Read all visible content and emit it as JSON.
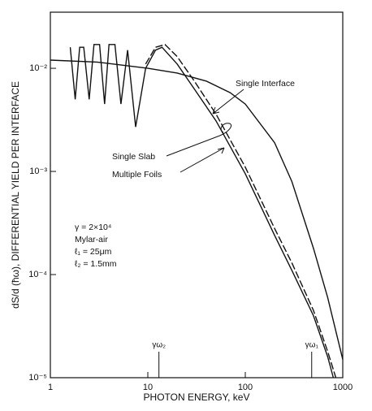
{
  "chart_data": {
    "type": "line",
    "x_label": "PHOTON ENERGY, keV",
    "y_label": "dS/d (ħω), DIFFERENTIAL YIELD PER INTERFACE",
    "xscale": "log",
    "yscale": "log",
    "xlim": [
      1,
      1000
    ],
    "ylim": [
      1e-05,
      0.035
    ],
    "xticks": [
      1,
      10,
      100,
      1000
    ],
    "yticks": [
      {
        "value": 0.01,
        "label": "10⁻²"
      },
      {
        "value": 0.001,
        "label": "10⁻³"
      },
      {
        "value": 0.0001,
        "label": "10⁻⁴"
      },
      {
        "value": 1e-05,
        "label": "10⁻⁵"
      }
    ],
    "series": [
      {
        "name": "Single Interface",
        "color": "#111111",
        "dash": false,
        "x": [
          1,
          3,
          10,
          20,
          40,
          70,
          100,
          200,
          300,
          500,
          700,
          1000
        ],
        "values": [
          0.012,
          0.0115,
          0.01,
          0.009,
          0.0075,
          0.0058,
          0.0045,
          0.0019,
          0.0008,
          0.00018,
          6e-05,
          1.5e-05
        ]
      },
      {
        "name": "Single Slab",
        "color": "#111111",
        "dash": false,
        "x": [
          1.6,
          1.8,
          2.0,
          2.2,
          2.5,
          2.8,
          3.2,
          3.6,
          4.0,
          4.6,
          5.3,
          6.2,
          7.5,
          9.5,
          12,
          14,
          20,
          30,
          50,
          100,
          200,
          300,
          500,
          700,
          800
        ],
        "values": [
          0.016,
          0.005,
          0.016,
          0.016,
          0.005,
          0.017,
          0.017,
          0.0045,
          0.017,
          0.017,
          0.0045,
          0.015,
          0.0027,
          0.01,
          0.015,
          0.016,
          0.011,
          0.0063,
          0.0031,
          0.00095,
          0.00024,
          0.00011,
          4e-05,
          1.6e-05,
          1e-05
        ]
      },
      {
        "name": "Multiple Foils",
        "color": "#111111",
        "dash": true,
        "x": [
          9.5,
          12,
          15,
          20,
          30,
          50,
          100,
          200,
          300,
          500,
          700,
          850
        ],
        "values": [
          0.011,
          0.016,
          0.017,
          0.013,
          0.0075,
          0.0036,
          0.0011,
          0.00028,
          0.00013,
          4.5e-05,
          1.8e-05,
          1e-05
        ]
      }
    ],
    "parameters": [
      "γ = 2×10⁴",
      "Mylar-air",
      "ℓ₁ = 25μm",
      "ℓ₂ = 1.5mm"
    ],
    "markers": [
      {
        "label": "γω₂",
        "x": 13
      },
      {
        "label": "γω₁",
        "x": 480
      }
    ]
  }
}
